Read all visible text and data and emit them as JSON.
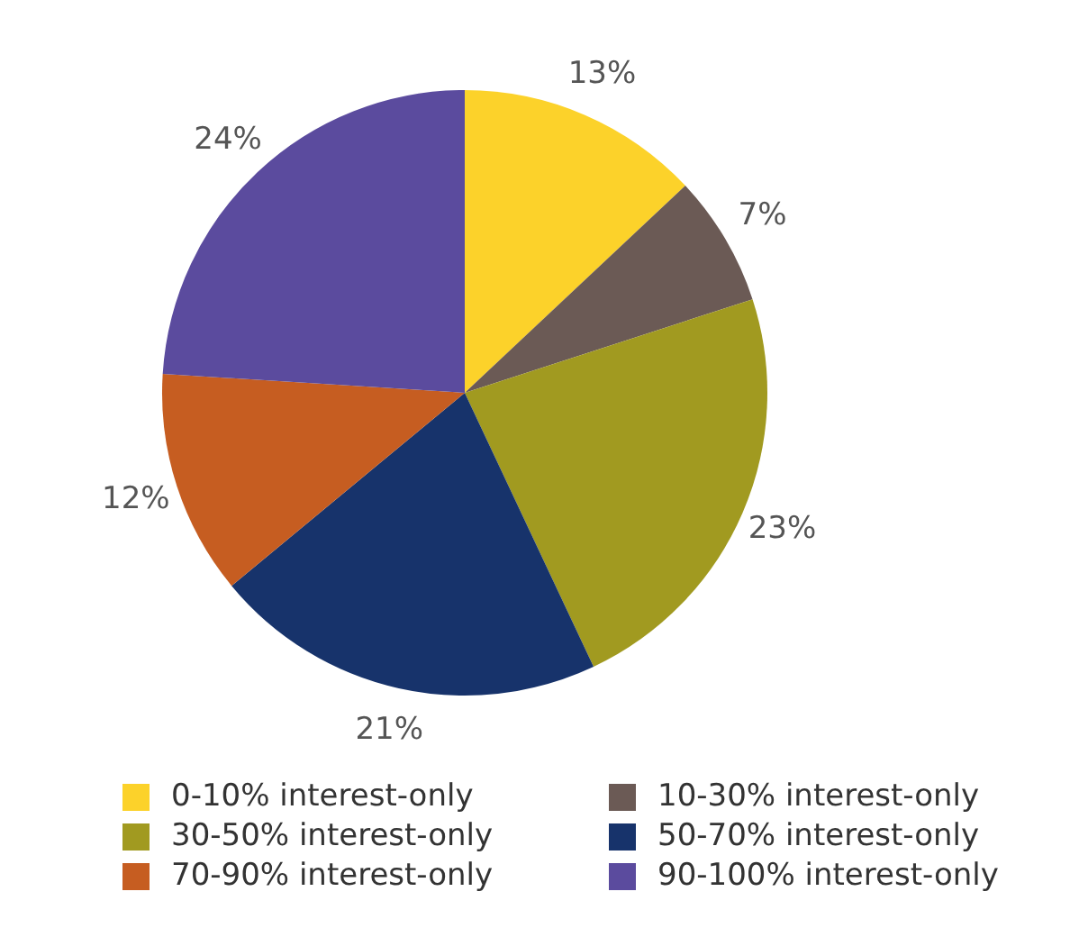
{
  "chart_data": {
    "type": "pie",
    "categories": [
      "0-10% interest-only",
      "10-30% interest-only",
      "30-50% interest-only",
      "50-70% interest-only",
      "70-90% interest-only",
      "90-100% interest-only"
    ],
    "values": [
      13,
      7,
      23,
      21,
      12,
      24
    ],
    "value_labels": [
      "13%",
      "7%",
      "23%",
      "21%",
      "12%",
      "24%"
    ],
    "colors": [
      "#fcd22a",
      "#6b5a55",
      "#a19a20",
      "#17336b",
      "#c65d21",
      "#5b4b9e"
    ],
    "legend": "bottom"
  }
}
